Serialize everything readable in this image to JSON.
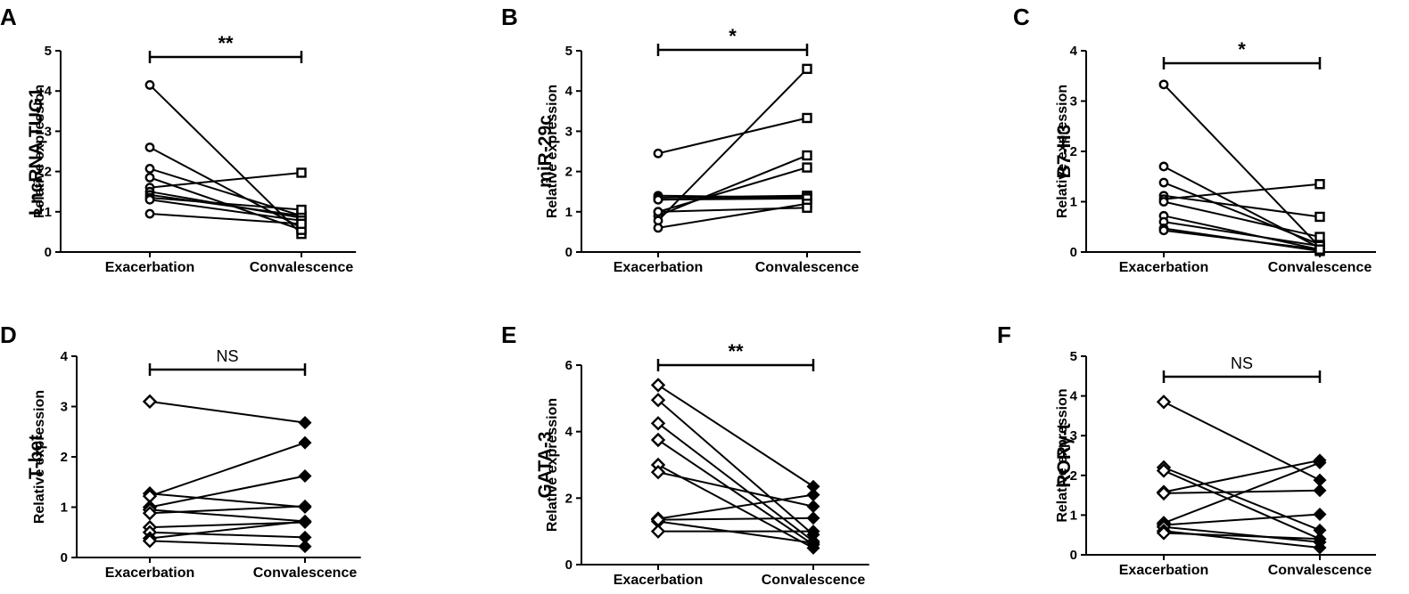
{
  "figure": {
    "categories": [
      "Exacerbation",
      "Convalescence"
    ],
    "ylabel": "Relative expression"
  },
  "chart_data": [
    {
      "type": "line",
      "panel": "A",
      "gene": "LncRNA TUG1",
      "ylabel": "Relative expression",
      "ylim": [
        0,
        5
      ],
      "yticks": [
        0,
        1,
        2,
        3,
        4,
        5
      ],
      "categories": [
        "Exacerbation",
        "Convalescence"
      ],
      "marker_left": "circle",
      "marker_right": "square",
      "significance": "**",
      "series": [
        {
          "values": [
            4.15,
            0.45
          ]
        },
        {
          "values": [
            2.6,
            0.6
          ]
        },
        {
          "values": [
            2.07,
            0.9
          ]
        },
        {
          "values": [
            1.85,
            0.55
          ]
        },
        {
          "values": [
            1.6,
            1.97
          ]
        },
        {
          "values": [
            1.5,
            0.85
          ]
        },
        {
          "values": [
            1.42,
            0.9
          ]
        },
        {
          "values": [
            1.35,
            1.05
          ]
        },
        {
          "values": [
            1.3,
            0.78
          ]
        },
        {
          "values": [
            0.95,
            0.7
          ]
        }
      ]
    },
    {
      "type": "line",
      "panel": "B",
      "gene": "miR-29c",
      "ylabel": "Relative expression",
      "ylim": [
        0,
        5
      ],
      "yticks": [
        0,
        1,
        2,
        3,
        4,
        5
      ],
      "categories": [
        "Exacerbation",
        "Convalescence"
      ],
      "marker_left": "circle",
      "marker_right": "square",
      "significance": "*",
      "series": [
        {
          "values": [
            2.45,
            3.33
          ]
        },
        {
          "values": [
            1.4,
            1.35
          ]
        },
        {
          "values": [
            1.35,
            1.4
          ]
        },
        {
          "values": [
            1.3,
            1.38
          ]
        },
        {
          "values": [
            1.3,
            1.33
          ]
        },
        {
          "values": [
            1.0,
            2.1
          ]
        },
        {
          "values": [
            0.9,
            2.4
          ]
        },
        {
          "values": [
            0.78,
            4.55
          ]
        },
        {
          "values": [
            0.6,
            1.2
          ]
        },
        {
          "values": [
            1.0,
            1.1
          ]
        }
      ]
    },
    {
      "type": "line",
      "panel": "C",
      "gene": "B7-H3",
      "ylabel": "Relative expression",
      "ylim": [
        0,
        4
      ],
      "yticks": [
        0,
        1,
        2,
        3,
        4
      ],
      "categories": [
        "Exacerbation",
        "Convalescence"
      ],
      "marker_left": "circle",
      "marker_right": "square",
      "significance": "*",
      "series": [
        {
          "values": [
            3.33,
            0.1
          ]
        },
        {
          "values": [
            1.7,
            0.08
          ]
        },
        {
          "values": [
            1.38,
            0.15
          ]
        },
        {
          "values": [
            1.12,
            0.7
          ]
        },
        {
          "values": [
            1.05,
            1.35
          ]
        },
        {
          "values": [
            1.0,
            0.3
          ]
        },
        {
          "values": [
            0.72,
            0.05
          ]
        },
        {
          "values": [
            0.6,
            0.12
          ]
        },
        {
          "values": [
            0.47,
            0.02
          ]
        },
        {
          "values": [
            0.43,
            0.05
          ]
        }
      ]
    },
    {
      "type": "line",
      "panel": "D",
      "gene": "T-bet",
      "ylabel": "Relative expression",
      "ylim": [
        0,
        4
      ],
      "yticks": [
        0,
        1,
        2,
        3,
        4
      ],
      "categories": [
        "Exacerbation",
        "Convalescence"
      ],
      "marker_left": "open-diamond",
      "marker_right": "filled-diamond",
      "significance": "NS",
      "series": [
        {
          "values": [
            3.1,
            2.68
          ]
        },
        {
          "values": [
            1.27,
            1.0
          ]
        },
        {
          "values": [
            1.22,
            2.28
          ]
        },
        {
          "values": [
            1.0,
            1.62
          ]
        },
        {
          "values": [
            0.95,
            0.72
          ]
        },
        {
          "values": [
            0.88,
            1.02
          ]
        },
        {
          "values": [
            0.6,
            0.7
          ]
        },
        {
          "values": [
            0.5,
            0.4
          ]
        },
        {
          "values": [
            0.38,
            0.72
          ]
        },
        {
          "values": [
            0.33,
            0.22
          ]
        }
      ]
    },
    {
      "type": "line",
      "panel": "E",
      "gene": "GATA-3",
      "ylabel": "Relative expression",
      "ylim": [
        0,
        6
      ],
      "yticks": [
        0,
        2,
        4,
        6
      ],
      "categories": [
        "Exacerbation",
        "Convalescence"
      ],
      "marker_left": "open-diamond",
      "marker_right": "filled-diamond",
      "significance": "**",
      "series": [
        {
          "values": [
            5.4,
            2.35
          ]
        },
        {
          "values": [
            4.95,
            0.9
          ]
        },
        {
          "values": [
            4.25,
            0.7
          ]
        },
        {
          "values": [
            3.75,
            0.6
          ]
        },
        {
          "values": [
            3.0,
            0.5
          ]
        },
        {
          "values": [
            2.78,
            1.75
          ]
        },
        {
          "values": [
            1.38,
            2.1
          ]
        },
        {
          "values": [
            1.3,
            0.65
          ]
        },
        {
          "values": [
            1.35,
            1.4
          ]
        },
        {
          "values": [
            1.0,
            1.0
          ]
        }
      ]
    },
    {
      "type": "line",
      "panel": "F",
      "gene": "RORγ-t",
      "ylabel": "Relative expression",
      "ylim": [
        0,
        5
      ],
      "yticks": [
        0,
        1,
        2,
        3,
        4,
        5
      ],
      "categories": [
        "Exacerbation",
        "Convalescence"
      ],
      "marker_left": "open-diamond",
      "marker_right": "filled-diamond",
      "significance": "NS",
      "series": [
        {
          "values": [
            3.85,
            1.88
          ]
        },
        {
          "values": [
            2.2,
            0.62
          ]
        },
        {
          "values": [
            2.12,
            0.4
          ]
        },
        {
          "values": [
            1.58,
            2.38
          ]
        },
        {
          "values": [
            1.55,
            1.62
          ]
        },
        {
          "values": [
            0.8,
            2.32
          ]
        },
        {
          "values": [
            0.75,
            1.02
          ]
        },
        {
          "values": [
            0.7,
            0.32
          ]
        },
        {
          "values": [
            0.6,
            0.18
          ]
        },
        {
          "values": [
            0.55,
            0.4
          ]
        }
      ]
    }
  ]
}
